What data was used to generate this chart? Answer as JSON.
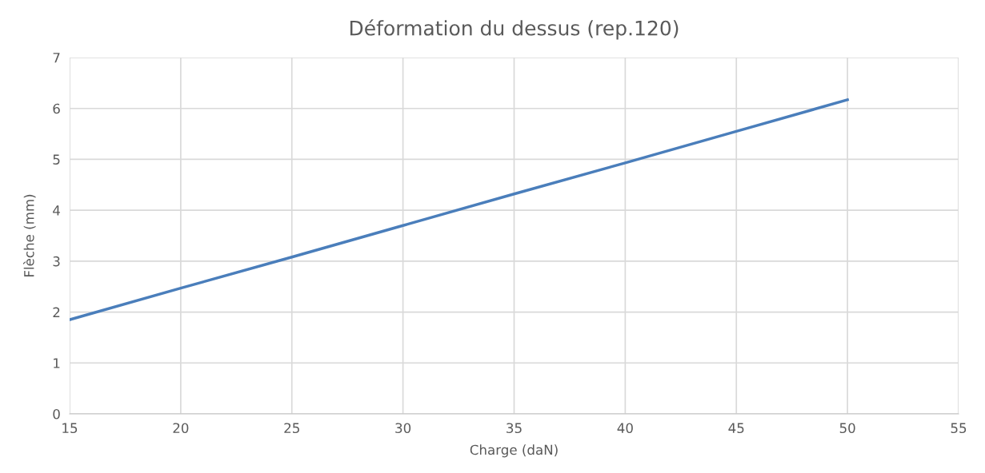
{
  "chart_data": {
    "type": "line",
    "title": "Déformation du dessus (rep.120)",
    "xlabel": "Charge (daN)",
    "ylabel": "Flèche (mm)",
    "x": [
      15,
      20,
      25,
      30,
      35,
      40,
      45,
      50
    ],
    "series": [
      {
        "color": "#4a7ebb",
        "values": [
          1.85,
          2.47,
          3.08,
          3.7,
          4.32,
          4.93,
          5.55,
          6.17
        ]
      }
    ],
    "xlim": [
      15,
      55
    ],
    "xticks": [
      15,
      20,
      25,
      30,
      35,
      40,
      45,
      50,
      55
    ],
    "ylim": [
      0,
      7
    ],
    "yticks": [
      0,
      1,
      2,
      3,
      4,
      5,
      6,
      7
    ],
    "grid": true,
    "legend": false,
    "marker": "none",
    "line_style": "solid"
  }
}
